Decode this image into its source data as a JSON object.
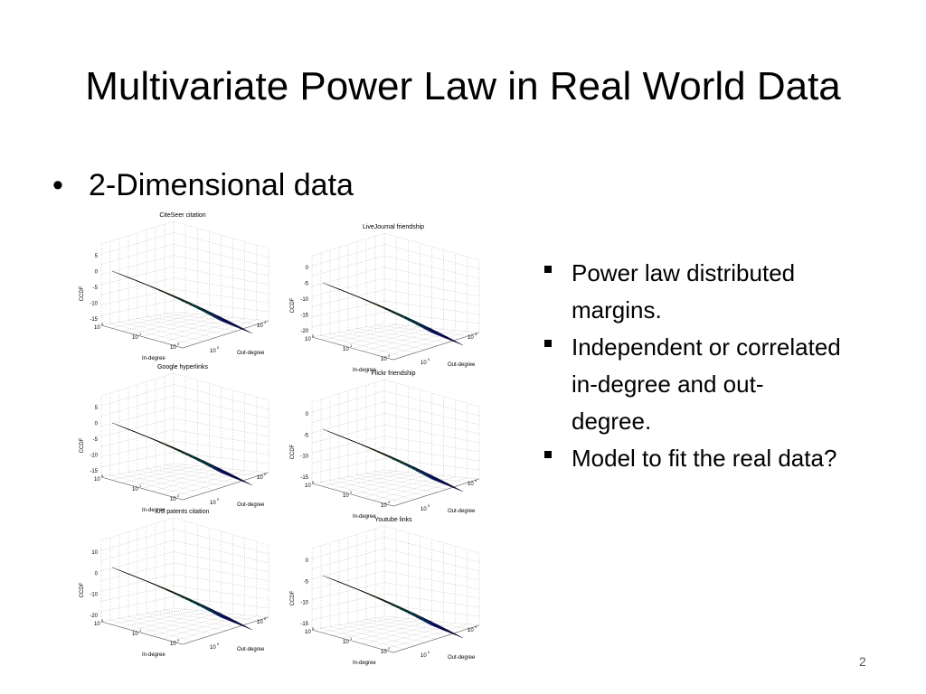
{
  "slide": {
    "title": "Multivariate Power Law in Real World Data",
    "bullet": "2-Dimensional data",
    "sub_bullets": [
      "Power law distributed margins.",
      "Independent or correlated in-degree and out-degree.",
      "Model to fit the real data?"
    ],
    "page_number": "2"
  },
  "plots": [
    {
      "title": "CiteSeer citation",
      "xlabel": "In-degree",
      "ylabel": "Out-degree",
      "zlabel": "CCDF",
      "zticks": [
        "5",
        "0",
        "-5",
        "-10",
        "-15"
      ],
      "xticks": [
        "10",
        "10",
        "10"
      ],
      "xexp": [
        "0",
        "1",
        "2"
      ],
      "yticks": [
        "10",
        "10"
      ],
      "yexp": [
        "0",
        "1"
      ]
    },
    {
      "title": "LiveJournal friendship",
      "xlabel": "In-degree",
      "ylabel": "Out-degree",
      "zlabel": "CCDF",
      "zticks": [
        "0",
        "-5",
        "-10",
        "-15",
        "-20"
      ],
      "xticks": [
        "10",
        "10",
        "10"
      ],
      "xexp": [
        "0",
        "1",
        "2"
      ],
      "yticks": [
        "10",
        "10"
      ],
      "yexp": [
        "0",
        "4"
      ]
    },
    {
      "title": "Google hyperlinks",
      "xlabel": "In-degree",
      "ylabel": "Out-degree",
      "zlabel": "CCDF",
      "zticks": [
        "5",
        "0",
        "-5",
        "-10",
        "-15"
      ],
      "xticks": [
        "10",
        "10",
        "10"
      ],
      "xexp": [
        "0",
        "1",
        "2"
      ],
      "yticks": [
        "10",
        "10"
      ],
      "yexp": [
        "0",
        "2"
      ]
    },
    {
      "title": "Flickr friendship",
      "xlabel": "In-degree",
      "ylabel": "Out-degree",
      "zlabel": "CCDF",
      "zticks": [
        "0",
        "-5",
        "-10",
        "-15"
      ],
      "xticks": [
        "10",
        "10",
        "10"
      ],
      "xexp": [
        "0",
        "1",
        "2"
      ],
      "yticks": [
        "10",
        "10"
      ],
      "yexp": [
        "0",
        "4"
      ]
    },
    {
      "title": "US patents citation",
      "xlabel": "In-degree",
      "ylabel": "Out-degree",
      "zlabel": "CCDF",
      "zticks": [
        "10",
        "0",
        "-10",
        "-20"
      ],
      "xticks": [
        "10",
        "10",
        "10"
      ],
      "xexp": [
        "0",
        "1",
        "2"
      ],
      "yticks": [
        "10",
        "10"
      ],
      "yexp": [
        "0",
        "2"
      ]
    },
    {
      "title": "Youtube links",
      "xlabel": "In-degree",
      "ylabel": "Out-degree",
      "zlabel": "CCDF",
      "zticks": [
        "0",
        "-5",
        "-10",
        "-15"
      ],
      "xticks": [
        "10",
        "10",
        "10"
      ],
      "xexp": [
        "0",
        "1",
        "2"
      ],
      "yticks": [
        "10",
        "10"
      ],
      "yexp": [
        "0",
        "4"
      ]
    }
  ]
}
